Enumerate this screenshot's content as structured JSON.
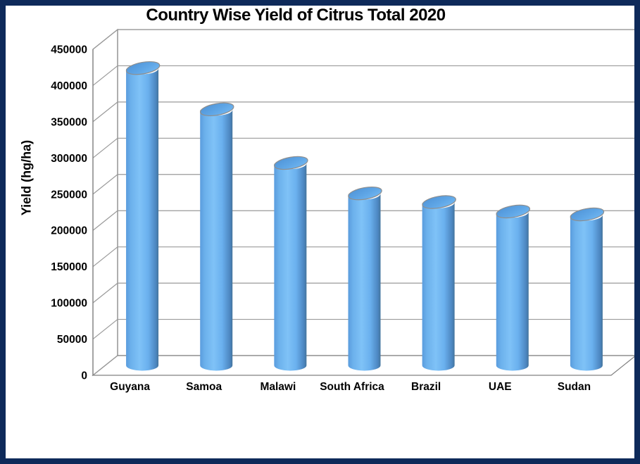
{
  "title": "Country Wise Yield of Citrus Total 2020",
  "chart_data": {
    "type": "bar",
    "subtype": "3d-cylinder-vertical",
    "title": "Country Wise Yield of Citrus Total 2020",
    "xlabel": "",
    "ylabel": "Yield (hg/ha)",
    "categories": [
      "Guyana",
      "Samoa",
      "Malawi",
      "South Africa",
      "Brazil",
      "UAE",
      "Sudan"
    ],
    "values": [
      410000,
      353000,
      279000,
      237000,
      225000,
      212000,
      208000
    ],
    "ylim": [
      0,
      450000
    ],
    "ytick_step": 50000,
    "ytick_labels": [
      "0",
      "50000",
      "100000",
      "150000",
      "200000",
      "250000",
      "300000",
      "350000",
      "400000",
      "450000"
    ],
    "grid": true,
    "legend": false,
    "colors": {
      "bar_main": "#6ab0ee",
      "bar_highlight": "#7fc2f7",
      "bar_shadow_left": "#5a9cdd",
      "bar_shadow_right": "#44749c",
      "bar_cap_dark": "#4e92d6",
      "bar_cap_light": "#74b9f3",
      "gridline": "#9a9a9a",
      "axis": "#808080",
      "wall": "#ffffff",
      "background": "#ffffff",
      "frame_border": "#0e2a5a",
      "text": "#000000"
    }
  }
}
